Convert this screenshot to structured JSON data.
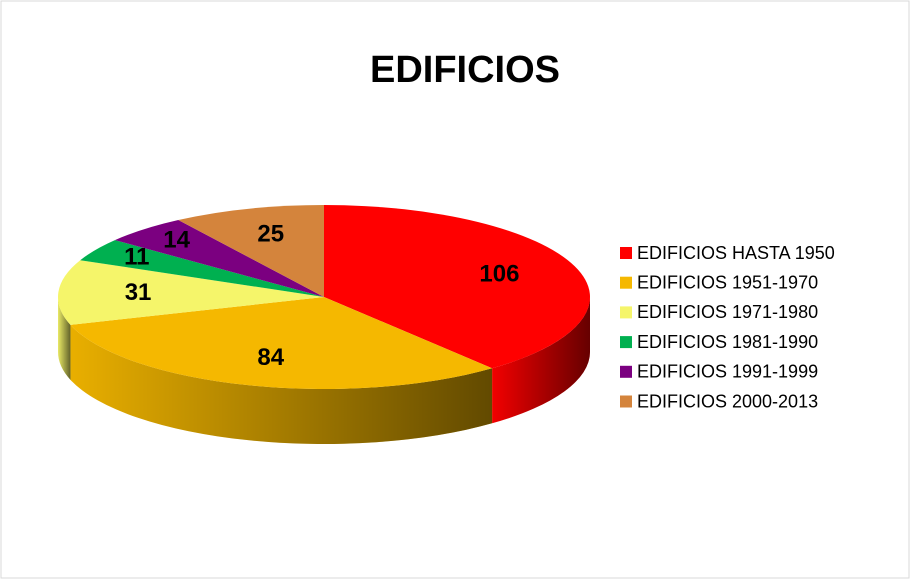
{
  "chart_data": {
    "type": "pie",
    "title": "EDIFICIOS",
    "categories": [
      "EDIFICIOS HASTA 1950",
      "EDIFICIOS 1951-1970",
      "EDIFICIOS 1971-1980",
      "EDIFICIOS 1981-1990",
      "EDIFICIOS 1991-1999",
      "EDIFICIOS 2000-2013"
    ],
    "values": [
      106,
      84,
      31,
      11,
      14,
      25
    ],
    "colors": [
      "#ff0000",
      "#f5b800",
      "#f5f56a",
      "#00b050",
      "#7b0080",
      "#d4843c"
    ],
    "legend": "right"
  }
}
